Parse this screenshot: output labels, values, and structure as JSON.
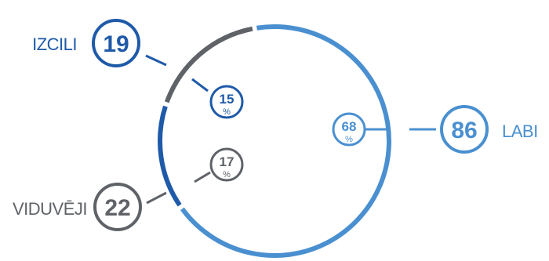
{
  "chart_data": {
    "type": "pie",
    "style": "ring",
    "categories": [
      "LABI",
      "IZCILI",
      "VIDUVĒJI"
    ],
    "counts": [
      86,
      19,
      22
    ],
    "percents": [
      68,
      15,
      17
    ],
    "percent_sign": "%",
    "colors": [
      "#4a90d0",
      "#1f5aa8",
      "#5f6368"
    ]
  }
}
